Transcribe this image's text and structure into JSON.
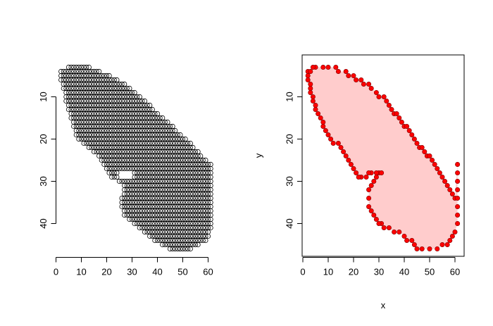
{
  "chart_data": [
    {
      "type": "scatter",
      "panel": "left",
      "title": "",
      "xlabel": "",
      "ylabel": "",
      "xlim": [
        0,
        62
      ],
      "ylim_reversed": [
        48,
        1
      ],
      "x_ticks": [
        "0",
        "10",
        "20",
        "30",
        "40",
        "50",
        "60"
      ],
      "y_ticks": [
        "10",
        "20",
        "30",
        "40"
      ],
      "box": false,
      "marker": "open-circle",
      "grid_step": 1,
      "point_color": "#000000",
      "region_rows": [
        {
          "y": 3,
          "x_min": 5,
          "x_max": 13
        },
        {
          "y": 4,
          "x_min": 2,
          "x_max": 17
        },
        {
          "y": 5,
          "x_min": 2,
          "x_max": 21
        },
        {
          "y": 6,
          "x_min": 2,
          "x_max": 24
        },
        {
          "y": 7,
          "x_min": 3,
          "x_max": 27
        },
        {
          "y": 10,
          "x_min": 4,
          "x_max": 33
        },
        {
          "y": 15,
          "x_min": 6,
          "x_max": 42
        },
        {
          "y": 20,
          "x_min": 9,
          "x_max": 51
        },
        {
          "y": 24,
          "x_min": 17,
          "x_max": 57
        },
        {
          "y": 26,
          "x_min": 19,
          "x_max": 61
        },
        {
          "y": 27,
          "x_min": 20,
          "x_max": 61
        },
        {
          "y": 28,
          "x_min": 21,
          "x_max": 61
        },
        {
          "y": 29,
          "x_min": 22,
          "x_max": 61
        },
        {
          "y": 31,
          "x_min": 27,
          "x_max": 61
        },
        {
          "y": 35,
          "x_min": 26,
          "x_max": 61
        },
        {
          "y": 38,
          "x_min": 27,
          "x_max": 61
        },
        {
          "y": 41,
          "x_min": 33,
          "x_max": 61
        },
        {
          "y": 44,
          "x_min": 39,
          "x_max": 59
        },
        {
          "y": 46,
          "x_min": 45,
          "x_max": 53
        }
      ],
      "notch": {
        "y_min": 28,
        "y_max": 29,
        "x_min": 24,
        "x_max": 31
      }
    },
    {
      "type": "area",
      "panel": "right",
      "title": "",
      "xlabel": "x",
      "ylabel": "y",
      "xlim": [
        0,
        62
      ],
      "ylim_reversed": [
        48,
        1
      ],
      "x_ticks": [
        "0",
        "10",
        "20",
        "30",
        "40",
        "50",
        "60"
      ],
      "y_ticks": [
        "10",
        "20",
        "30",
        "40"
      ],
      "box": true,
      "fill_color": "#ffcccc",
      "boundary_color": "#ff0000",
      "boundary_marker": "filled-circle",
      "boundary": [
        [
          5,
          3
        ],
        [
          8,
          3
        ],
        [
          10,
          3
        ],
        [
          13,
          3
        ],
        [
          14,
          4
        ],
        [
          17,
          4
        ],
        [
          18,
          5
        ],
        [
          20,
          5
        ],
        [
          21,
          6
        ],
        [
          23,
          6
        ],
        [
          24,
          7
        ],
        [
          26,
          7
        ],
        [
          27,
          8
        ],
        [
          29,
          9
        ],
        [
          30,
          10
        ],
        [
          32,
          10
        ],
        [
          33,
          11
        ],
        [
          34,
          12
        ],
        [
          35,
          13
        ],
        [
          36,
          14
        ],
        [
          37,
          14
        ],
        [
          38,
          15
        ],
        [
          39,
          16
        ],
        [
          40,
          17
        ],
        [
          41,
          17
        ],
        [
          42,
          18
        ],
        [
          43,
          19
        ],
        [
          44,
          20
        ],
        [
          45,
          21
        ],
        [
          46,
          22
        ],
        [
          47,
          22
        ],
        [
          48,
          23
        ],
        [
          49,
          24
        ],
        [
          50,
          24
        ],
        [
          51,
          25
        ],
        [
          52,
          26
        ],
        [
          53,
          27
        ],
        [
          54,
          28
        ],
        [
          55,
          29
        ],
        [
          56,
          30
        ],
        [
          57,
          31
        ],
        [
          58,
          32
        ],
        [
          59,
          33
        ],
        [
          60,
          34
        ],
        [
          61,
          26
        ],
        [
          61,
          28
        ],
        [
          61,
          30
        ],
        [
          61,
          32
        ],
        [
          61,
          34
        ],
        [
          61,
          36
        ],
        [
          61,
          38
        ],
        [
          61,
          40
        ],
        [
          60,
          42
        ],
        [
          59,
          43
        ],
        [
          58,
          44
        ],
        [
          57,
          45
        ],
        [
          55,
          45
        ],
        [
          53,
          46
        ],
        [
          50,
          46
        ],
        [
          47,
          46
        ],
        [
          45,
          46
        ],
        [
          44,
          45
        ],
        [
          43,
          44
        ],
        [
          41,
          44
        ],
        [
          40,
          43
        ],
        [
          38,
          42
        ],
        [
          36,
          42
        ],
        [
          34,
          41
        ],
        [
          32,
          41
        ],
        [
          31,
          40
        ],
        [
          30,
          40
        ],
        [
          29,
          39
        ],
        [
          28,
          38
        ],
        [
          27,
          37
        ],
        [
          26,
          36
        ],
        [
          26,
          34
        ],
        [
          26,
          32
        ],
        [
          27,
          31
        ],
        [
          28,
          30
        ],
        [
          29,
          29
        ],
        [
          30,
          28
        ],
        [
          31,
          28
        ],
        [
          29,
          28
        ],
        [
          27,
          28
        ],
        [
          26,
          28
        ],
        [
          25,
          29
        ],
        [
          23,
          29
        ],
        [
          22,
          29
        ],
        [
          21,
          28
        ],
        [
          20,
          27
        ],
        [
          19,
          26
        ],
        [
          18,
          25
        ],
        [
          17,
          24
        ],
        [
          16,
          23
        ],
        [
          15,
          22
        ],
        [
          14,
          21
        ],
        [
          12,
          21
        ],
        [
          11,
          20
        ],
        [
          10,
          19
        ],
        [
          9,
          18
        ],
        [
          8,
          17
        ],
        [
          8,
          16
        ],
        [
          7,
          15
        ],
        [
          6,
          14
        ],
        [
          5,
          13
        ],
        [
          5,
          12
        ],
        [
          4,
          11
        ],
        [
          4,
          10
        ],
        [
          3,
          9
        ],
        [
          3,
          8
        ],
        [
          3,
          7
        ],
        [
          2,
          6
        ],
        [
          2,
          5
        ],
        [
          2,
          4
        ],
        [
          3,
          4
        ],
        [
          4,
          3
        ]
      ]
    }
  ]
}
